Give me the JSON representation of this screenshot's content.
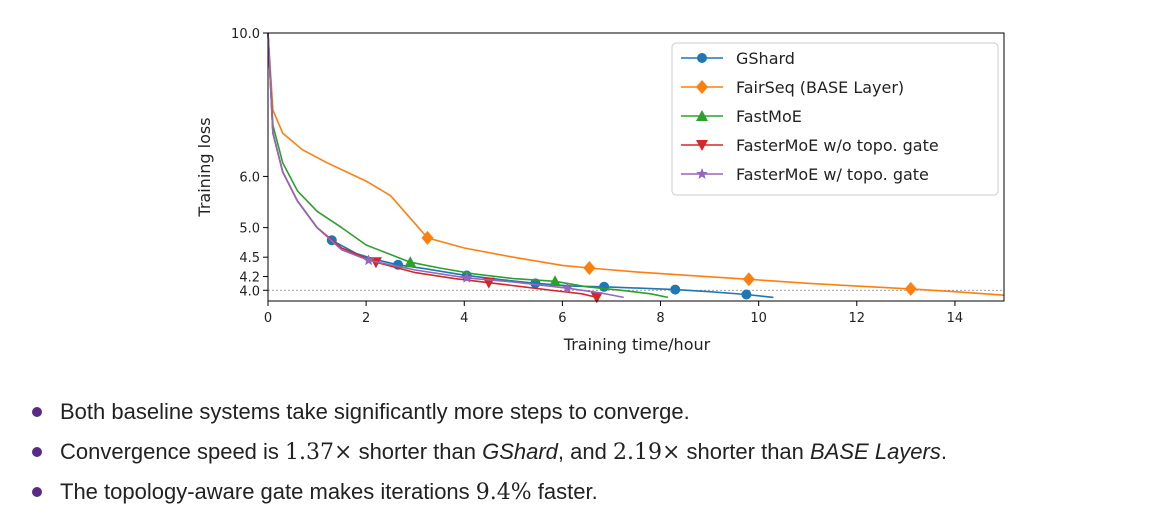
{
  "chart_data": {
    "type": "line",
    "xlabel": "Training time/hour",
    "ylabel": "Training loss",
    "xlim": [
      0,
      15
    ],
    "ylim": [
      3.85,
      10.0
    ],
    "yscale": "log",
    "x_ticks": [
      "0",
      "2",
      "4",
      "6",
      "8",
      "10",
      "12",
      "14"
    ],
    "y_ticks": [
      "10.0",
      "6.0",
      "5.0",
      "4.5",
      "4.2",
      "4.0"
    ],
    "reference_line": 4.0,
    "grid": false,
    "legend_position": "top-right",
    "series": [
      {
        "name": "GShard",
        "color": "#1f77b4",
        "marker": "circle",
        "x": [
          0.0,
          0.1,
          0.3,
          0.6,
          1.0,
          1.3,
          1.8,
          2.2,
          2.65,
          3.2,
          4.0,
          4.8,
          5.45,
          6.2,
          6.85,
          7.6,
          8.3,
          9.0,
          9.75,
          10.3
        ],
        "y": [
          10.0,
          7.0,
          6.1,
          5.5,
          5.0,
          4.78,
          4.56,
          4.46,
          4.38,
          4.32,
          4.22,
          4.15,
          4.1,
          4.06,
          4.05,
          4.03,
          4.01,
          3.98,
          3.94,
          3.9
        ],
        "markers_x": [
          1.3,
          2.65,
          4.05,
          5.45,
          6.85,
          8.3,
          9.75
        ]
      },
      {
        "name": "FairSeq (BASE Layer)",
        "color": "#ff7f0e",
        "marker": "diamond",
        "x": [
          0.0,
          0.1,
          0.3,
          0.7,
          1.2,
          2.0,
          2.5,
          3.25,
          4.0,
          5.0,
          6.0,
          6.55,
          7.5,
          8.5,
          9.8,
          11.0,
          12.0,
          13.1,
          14.0,
          15.0
        ],
        "y": [
          10.0,
          7.6,
          7.0,
          6.6,
          6.3,
          5.9,
          5.6,
          4.82,
          4.65,
          4.5,
          4.37,
          4.33,
          4.27,
          4.22,
          4.16,
          4.1,
          4.06,
          4.02,
          3.98,
          3.93
        ],
        "markers_x": [
          3.25,
          6.55,
          9.8,
          13.1
        ]
      },
      {
        "name": "FastMoE",
        "color": "#2ca02c",
        "marker": "triangle-up",
        "x": [
          0.0,
          0.1,
          0.3,
          0.6,
          1.0,
          1.5,
          2.0,
          2.9,
          3.5,
          4.2,
          5.0,
          5.85,
          6.5,
          7.2,
          7.8,
          8.15
        ],
        "y": [
          10.0,
          7.2,
          6.3,
          5.7,
          5.3,
          5.0,
          4.7,
          4.42,
          4.33,
          4.24,
          4.17,
          4.13,
          4.05,
          4.0,
          3.95,
          3.9
        ],
        "markers_x": [
          2.9,
          5.85
        ]
      },
      {
        "name": "FasterMoE w/o topo. gate",
        "color": "#d62728",
        "marker": "triangle-down",
        "x": [
          0.0,
          0.1,
          0.3,
          0.6,
          1.0,
          1.5,
          2.2,
          3.0,
          3.8,
          4.5,
          5.2,
          5.9,
          6.4,
          6.7
        ],
        "y": [
          10.0,
          7.0,
          6.1,
          5.5,
          5.0,
          4.65,
          4.42,
          4.26,
          4.17,
          4.11,
          4.05,
          3.99,
          3.95,
          3.9
        ],
        "markers_x": [
          2.2,
          4.5,
          6.7
        ]
      },
      {
        "name": "FasterMoE w/ topo. gate",
        "color": "#9467bd",
        "marker": "star",
        "x": [
          0.0,
          0.1,
          0.3,
          0.6,
          1.0,
          1.5,
          2.05,
          3.0,
          4.05,
          5.0,
          6.1,
          6.8,
          7.25
        ],
        "y": [
          10.0,
          7.0,
          6.1,
          5.5,
          5.0,
          4.62,
          4.45,
          4.3,
          4.18,
          4.12,
          4.03,
          3.96,
          3.9
        ],
        "markers_x": [
          2.05,
          4.05,
          6.1
        ]
      }
    ]
  },
  "bullets": [
    {
      "text": "Both baseline systems take significantly more steps to converge."
    },
    {
      "p1": "Convergence speed is ",
      "m1": "1.37×",
      "p2": " shorter than ",
      "i1": "GShard",
      "p3": ", and ",
      "m2": "2.19×",
      "p4": " shorter than ",
      "i2": "BASE Layers",
      "p5": "."
    },
    {
      "p1": "The topology-aware gate makes iterations ",
      "m1": "9.4%",
      "p2": " faster."
    }
  ]
}
